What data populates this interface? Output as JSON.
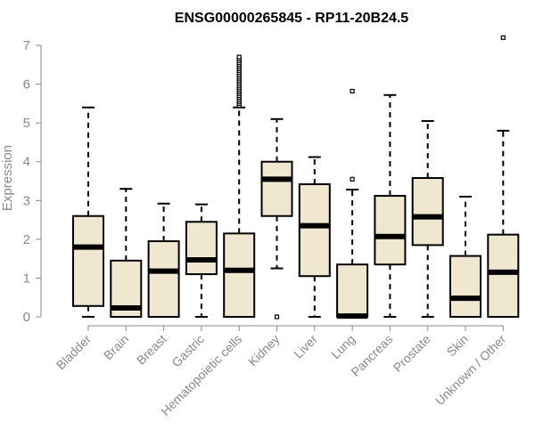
{
  "chart_data": {
    "type": "box",
    "title": "ENSG00000265845 - RP11-20B24.5",
    "ylabel": "Expression",
    "xlabel": "",
    "ylim": [
      0,
      7
    ],
    "yticks": [
      0,
      1,
      2,
      3,
      4,
      5,
      6,
      7
    ],
    "grid": false,
    "legend": "none",
    "box_fill": "#efe7d0",
    "stroke_color": "#000000",
    "categories": [
      "Bladder",
      "Brain",
      "Breast",
      "Gastric",
      "Hematopoietic cells",
      "Kidney",
      "Liver",
      "Lung",
      "Pancreas",
      "Prostate",
      "Skin",
      "Unknown / Other"
    ],
    "boxes": [
      {
        "min": 0.0,
        "q1": 0.28,
        "median": 1.8,
        "q3": 2.6,
        "max": 5.4,
        "outliers": []
      },
      {
        "min": 0.0,
        "q1": 0.0,
        "median": 0.23,
        "q3": 1.45,
        "max": 3.3,
        "outliers": []
      },
      {
        "min": 0.0,
        "q1": 0.0,
        "median": 1.18,
        "q3": 1.95,
        "max": 2.92,
        "outliers": []
      },
      {
        "min": 0.0,
        "q1": 1.1,
        "median": 1.47,
        "q3": 2.45,
        "max": 2.9,
        "outliers": []
      },
      {
        "min": 0.0,
        "q1": 0.0,
        "median": 1.2,
        "q3": 2.15,
        "max": 5.4,
        "outliers": [
          5.45,
          5.5,
          5.55,
          5.6,
          5.65,
          5.7,
          5.75,
          5.8,
          5.85,
          5.9,
          5.95,
          6.0,
          6.05,
          6.1,
          6.15,
          6.2,
          6.25,
          6.3,
          6.35,
          6.4,
          6.45,
          6.5,
          6.55,
          6.6,
          6.65,
          6.7
        ]
      },
      {
        "min": 1.25,
        "q1": 2.6,
        "median": 3.55,
        "q3": 4.0,
        "max": 5.1,
        "outliers": [
          0.0
        ]
      },
      {
        "min": 0.0,
        "q1": 1.05,
        "median": 2.35,
        "q3": 3.42,
        "max": 4.12,
        "outliers": []
      },
      {
        "min": 0.0,
        "q1": 0.0,
        "median": 0.02,
        "q3": 1.35,
        "max": 3.28,
        "outliers": [
          3.55,
          5.82
        ]
      },
      {
        "min": 0.0,
        "q1": 1.35,
        "median": 2.07,
        "q3": 3.12,
        "max": 5.72,
        "outliers": []
      },
      {
        "min": 0.0,
        "q1": 1.85,
        "median": 2.58,
        "q3": 3.58,
        "max": 5.05,
        "outliers": []
      },
      {
        "min": 0.0,
        "q1": 0.0,
        "median": 0.48,
        "q3": 1.57,
        "max": 3.1,
        "outliers": []
      },
      {
        "min": 0.0,
        "q1": 0.0,
        "median": 1.15,
        "q3": 2.12,
        "max": 4.8,
        "outliers": [
          7.2
        ]
      }
    ]
  }
}
